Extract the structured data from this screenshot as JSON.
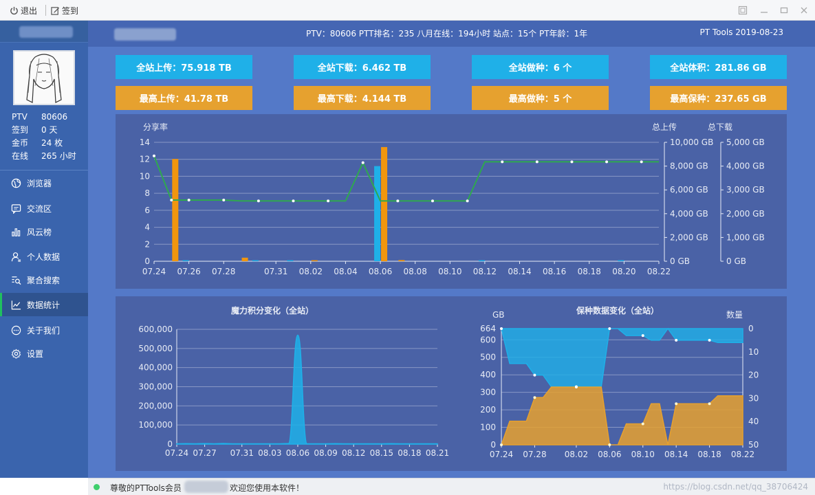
{
  "titlebar": {
    "logout_label": "退出",
    "checkin_label": "签到"
  },
  "header": {
    "stats_line": "PTV：80606   PTT排名：235   八月在线：194小时   站点：15个   PT年龄：1年",
    "brand": "PT Tools 2019-08-23"
  },
  "profile": {
    "rows": [
      {
        "key": "PTV",
        "value": "80606"
      },
      {
        "key": "签到",
        "value": "0 天"
      },
      {
        "key": "金币",
        "value": "24 枚"
      },
      {
        "key": "在线",
        "value": "265 小时"
      }
    ]
  },
  "nav": {
    "items": [
      {
        "label": "浏览器",
        "icon": "globe-icon"
      },
      {
        "label": "交流区",
        "icon": "chat-icon"
      },
      {
        "label": "风云榜",
        "icon": "bar-chart-icon"
      },
      {
        "label": "个人数据",
        "icon": "user-icon"
      },
      {
        "label": "聚合搜索",
        "icon": "search-list-icon"
      },
      {
        "label": "数据统计",
        "icon": "line-chart-icon"
      },
      {
        "label": "关于我们",
        "icon": "info-chat-icon"
      },
      {
        "label": "设置",
        "icon": "gear-icon"
      }
    ],
    "active_index": 5
  },
  "cards": {
    "row1": [
      "全站上传：75.918 TB",
      "全站下载：6.462 TB",
      "全站做种：6 个",
      "全站体积：281.86 GB"
    ],
    "row2": [
      "最高上传：41.78 TB",
      "最高下载：4.144 TB",
      "最高做种：5 个",
      "最高保种：237.65 GB"
    ],
    "colors": {
      "blue": "#1fb0e8",
      "orange": "#e6a12f"
    }
  },
  "status": {
    "left_text": "尊敬的PTTools会员",
    "right_text": "欢迎您使用本软件！",
    "watermark": "https://blog.csdn.net/qq_38706424"
  },
  "chart_data": [
    {
      "type": "bar",
      "title": "",
      "ylabel": "分享率",
      "y2label": "总上传",
      "y3label": "总下载",
      "categories": [
        "07.24",
        "07.25",
        "07.26",
        "07.27",
        "07.28",
        "07.29",
        "07.30",
        "07.31",
        "08.01",
        "08.02",
        "08.03",
        "08.04",
        "08.05",
        "08.06",
        "08.07",
        "08.08",
        "08.09",
        "08.10",
        "08.11",
        "08.12",
        "08.13",
        "08.14",
        "08.15",
        "08.16",
        "08.17",
        "08.18",
        "08.19",
        "08.20",
        "08.21",
        "08.22"
      ],
      "xticks": [
        "07.24",
        "07.26",
        "07.28",
        "07.31",
        "08.02",
        "08.04",
        "08.06",
        "08.08",
        "08.10",
        "08.12",
        "08.14",
        "08.16",
        "08.18",
        "08.20",
        "08.22"
      ],
      "ylim": [
        0,
        14
      ],
      "yticks": [
        0,
        2,
        4,
        6,
        8,
        10,
        12,
        14
      ],
      "y2lim": [
        0,
        10000
      ],
      "y2ticks": [
        "0 GB",
        "2,000 GB",
        "4,000 GB",
        "6,000 GB",
        "8,000 GB",
        "10,000 GB"
      ],
      "y3lim": [
        0,
        5000
      ],
      "y3ticks": [
        "0 GB",
        "1,000 GB",
        "2,000 GB",
        "3,000 GB",
        "4,000 GB",
        "5,000 GB"
      ],
      "series": [
        {
          "color": "#1fb0e8",
          "kind": "bar",
          "values": [
            0,
            0,
            10,
            0,
            0,
            0,
            50,
            0,
            50,
            0,
            0,
            0,
            0,
            8000,
            0,
            0,
            0,
            0,
            0,
            10,
            0,
            0,
            0,
            0,
            0,
            0,
            0,
            50,
            0,
            0
          ]
        },
        {
          "color": "#f0960e",
          "kind": "bar",
          "values": [
            0,
            8600,
            0,
            0,
            0,
            300,
            0,
            0,
            0,
            50,
            0,
            0,
            0,
            9600,
            100,
            0,
            0,
            0,
            0,
            0,
            0,
            0,
            0,
            0,
            0,
            0,
            0,
            0,
            0,
            0
          ]
        },
        {
          "color": "#2fa84f",
          "kind": "line",
          "values": [
            12.4,
            7.2,
            7.2,
            7.2,
            7.2,
            7.1,
            7.1,
            7.1,
            7.1,
            7.1,
            7.1,
            7.1,
            11.6,
            7.1,
            7.1,
            7.1,
            7.1,
            7.1,
            7.1,
            11.7,
            11.7,
            11.7,
            11.7,
            11.7,
            11.7,
            11.7,
            11.7,
            11.7,
            11.7,
            11.7
          ]
        }
      ]
    },
    {
      "type": "area",
      "title": "魔力积分变化（全站）",
      "categories": [
        "07.24",
        "07.25",
        "07.26",
        "07.27",
        "07.28",
        "07.29",
        "07.30",
        "07.31",
        "08.01",
        "08.02",
        "08.03",
        "08.04",
        "08.05",
        "08.06",
        "08.07",
        "08.08",
        "08.09",
        "08.10",
        "08.11",
        "08.12",
        "08.13",
        "08.14",
        "08.15",
        "08.16",
        "08.17",
        "08.18",
        "08.19",
        "08.20",
        "08.21"
      ],
      "xticks": [
        "07.24",
        "07.27",
        "07.31",
        "08.03",
        "08.06",
        "08.09",
        "08.12",
        "08.15",
        "08.18",
        "08.21"
      ],
      "ylim": [
        0,
        600000
      ],
      "yticks": [
        "0",
        "100,000",
        "200,000",
        "300,000",
        "400,000",
        "500,000",
        "600,000"
      ],
      "series": [
        {
          "color": "#1fb0e8",
          "values": [
            2000,
            2500,
            2000,
            3000,
            2000,
            3500,
            2000,
            2000,
            2000,
            2000,
            2000,
            2000,
            3000,
            570000,
            2000,
            2000,
            2000,
            2500,
            2000,
            2000,
            2000,
            2000,
            2000,
            2500,
            2000,
            2000,
            2000,
            2000,
            2000
          ]
        }
      ]
    },
    {
      "type": "area",
      "title": "保种数据变化（全站）",
      "ylabel": "GB",
      "y2label": "数量",
      "categories": [
        "07.24",
        "07.25",
        "07.26",
        "07.27",
        "07.28",
        "07.29",
        "07.30",
        "07.31",
        "08.01",
        "08.02",
        "08.03",
        "08.04",
        "08.05",
        "08.06",
        "08.07",
        "08.08",
        "08.09",
        "08.10",
        "08.11",
        "08.12",
        "08.13",
        "08.14",
        "08.15",
        "08.16",
        "08.17",
        "08.18",
        "08.19",
        "08.20",
        "08.21",
        "08.22"
      ],
      "xticks": [
        "07.24",
        "07.28",
        "08.02",
        "08.06",
        "08.10",
        "08.14",
        "08.18",
        "08.22"
      ],
      "ylim": [
        0,
        664
      ],
      "yticks": [
        "0",
        "100",
        "200",
        "300",
        "400",
        "500",
        "600",
        "664"
      ],
      "y2lim": [
        0,
        50
      ],
      "y2ticks": [
        "0",
        "10",
        "20",
        "30",
        "40",
        "50"
      ],
      "series": [
        {
          "color": "#1fb0e8",
          "axis": "right",
          "values": [
            0,
            15,
            15,
            15,
            20,
            20,
            25,
            25,
            25,
            25,
            25,
            25,
            25,
            0,
            0,
            3,
            3,
            3,
            5,
            5,
            0,
            5,
            5,
            5,
            5,
            5,
            6,
            6,
            6,
            6
          ]
        },
        {
          "color": "#e6a12f",
          "axis": "left",
          "values": [
            0,
            135,
            135,
            135,
            270,
            270,
            330,
            330,
            330,
            330,
            330,
            330,
            330,
            0,
            0,
            120,
            120,
            120,
            235,
            235,
            0,
            235,
            235,
            235,
            235,
            235,
            280,
            280,
            280,
            280
          ]
        }
      ]
    }
  ]
}
